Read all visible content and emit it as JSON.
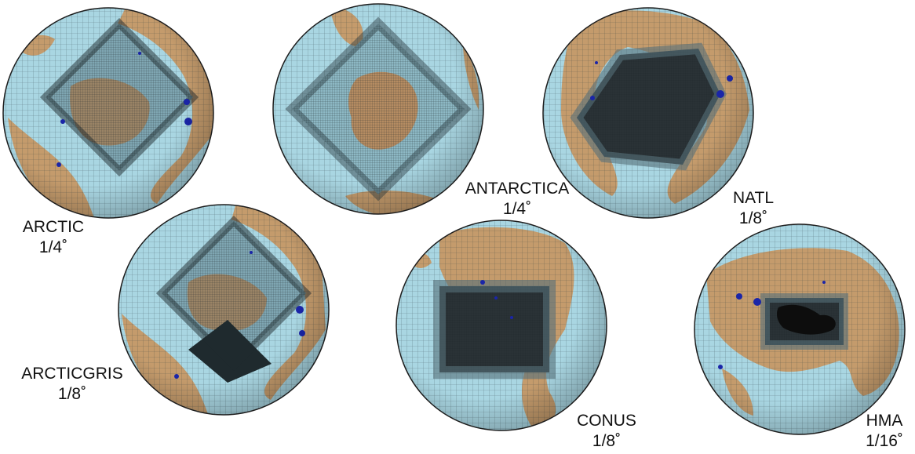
{
  "colors": {
    "ocean": "#a9d6e2",
    "land": "#c49b6c",
    "grid": "#2b3a40",
    "refined": "#1f2a2e",
    "lakes": "#1a25a8",
    "edge": "#1c1c1c"
  },
  "panels": [
    {
      "name": "ARCTIC",
      "resolution": "1/4˚"
    },
    {
      "name": "ANTARCTICA",
      "resolution": "1/4˚"
    },
    {
      "name": "NATL",
      "resolution": "1/8˚"
    },
    {
      "name": "ARCTICGRIS",
      "resolution": "1/8˚"
    },
    {
      "name": "CONUS",
      "resolution": "1/8˚"
    },
    {
      "name": "HMA",
      "resolution": "1/16˚"
    }
  ]
}
